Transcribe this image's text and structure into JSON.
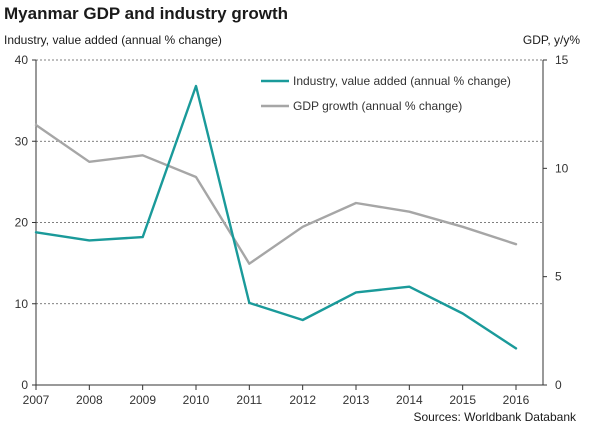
{
  "chart_data": {
    "type": "line",
    "title": "Myanmar GDP and industry growth",
    "ylabel_left": "Industry, value added (annual % change)",
    "ylabel_right": "GDP, y/y%",
    "source": "Sources: Worldbank Databank",
    "x": [
      "2007",
      "2008",
      "2009",
      "2010",
      "2011",
      "2012",
      "2013",
      "2014",
      "2015",
      "2016"
    ],
    "ylim_left": [
      0,
      40
    ],
    "yticks_left": [
      "0",
      "10",
      "20",
      "30",
      "40"
    ],
    "ylim_right": [
      0,
      15
    ],
    "yticks_right": [
      "0",
      "5",
      "10",
      "15"
    ],
    "grid": true,
    "legend_position": "top-right",
    "series": [
      {
        "name": "Industry, value added (annual % change)",
        "axis": "left",
        "color": "#1a9a9a",
        "values": [
          18.8,
          17.8,
          18.2,
          36.8,
          10.1,
          8.0,
          11.4,
          12.1,
          8.8,
          4.5
        ]
      },
      {
        "name": "GDP growth (annual % change)",
        "axis": "right",
        "color": "#a6a6a6",
        "values": [
          12.0,
          10.3,
          10.6,
          9.6,
          5.6,
          7.3,
          8.4,
          8.0,
          7.3,
          6.5
        ]
      }
    ]
  }
}
